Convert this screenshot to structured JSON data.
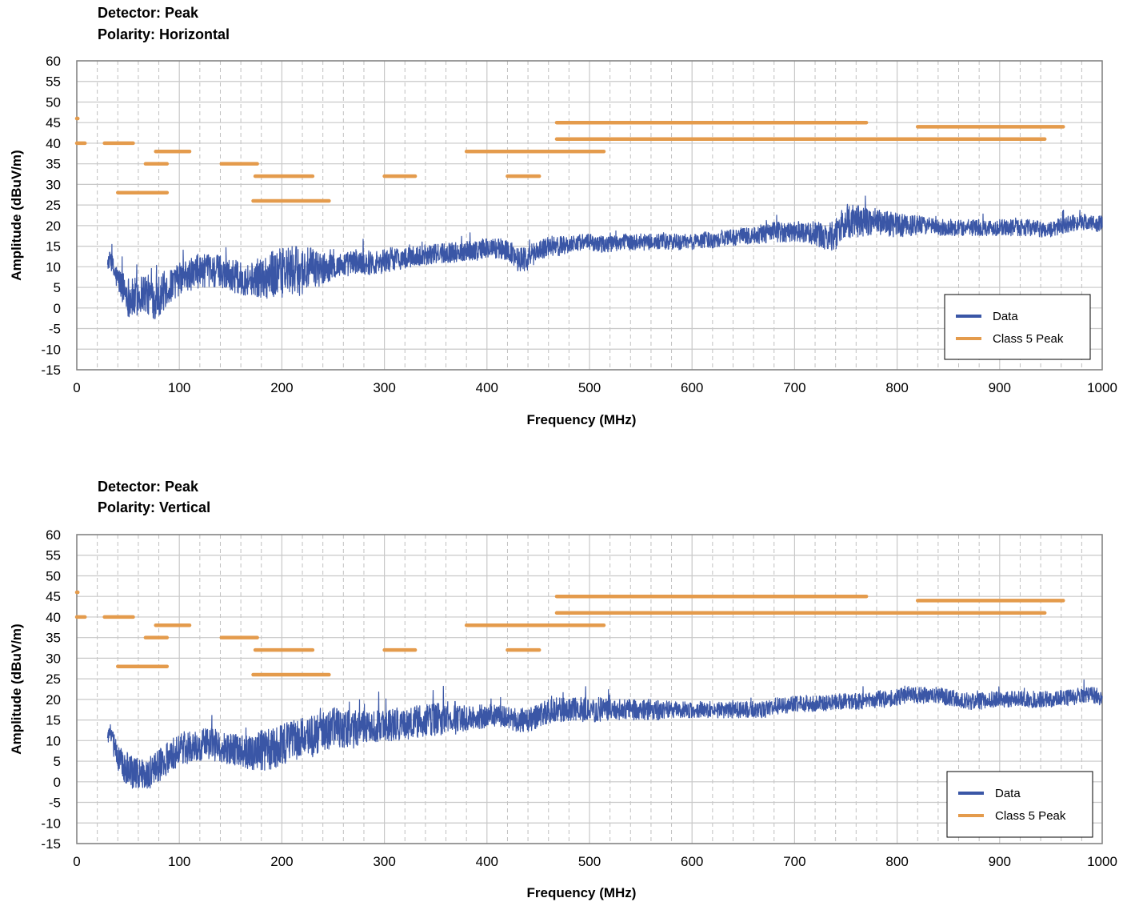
{
  "colors": {
    "data": "#3a56a6",
    "limit": "#e49b4c",
    "grid": "#c8c8c8",
    "axis": "#808080"
  },
  "chart_data": [
    {
      "type": "line",
      "title_lines": [
        "Detector: Peak",
        "Polarity: Horizontal"
      ],
      "xlabel": "Frequency (MHz)",
      "ylabel": "Amplitude (dBuV/m)",
      "xlim": [
        0,
        1000
      ],
      "ylim": [
        -15,
        60
      ],
      "x_ticks": [
        0,
        100,
        200,
        300,
        400,
        500,
        600,
        700,
        800,
        900,
        1000
      ],
      "y_ticks": [
        60,
        55,
        50,
        45,
        40,
        35,
        30,
        25,
        20,
        15,
        10,
        5,
        0,
        -5,
        -10,
        -15
      ],
      "grid": true,
      "legend_position": "bottom-right",
      "legend": [
        "Data",
        "Class 5 Peak"
      ],
      "series": [
        {
          "name": "Data",
          "style": "noisy-line",
          "x": [
            30,
            33,
            36,
            40,
            45,
            50,
            55,
            60,
            65,
            70,
            75,
            80,
            85,
            90,
            95,
            100,
            110,
            120,
            130,
            140,
            150,
            160,
            170,
            180,
            190,
            200,
            210,
            220,
            230,
            240,
            250,
            260,
            270,
            280,
            290,
            300,
            310,
            320,
            330,
            340,
            350,
            360,
            370,
            380,
            390,
            400,
            410,
            420,
            430,
            440,
            450,
            460,
            470,
            480,
            490,
            500,
            510,
            520,
            530,
            540,
            550,
            560,
            570,
            580,
            590,
            600,
            610,
            620,
            630,
            640,
            650,
            660,
            670,
            680,
            690,
            700,
            710,
            720,
            730,
            740,
            750,
            760,
            770,
            780,
            790,
            800,
            810,
            820,
            830,
            840,
            850,
            860,
            870,
            880,
            890,
            900,
            910,
            920,
            930,
            940,
            950,
            960,
            970,
            980,
            990,
            1000
          ],
          "y": [
            11,
            12,
            9,
            7,
            5,
            3,
            2,
            3,
            4,
            3,
            2,
            3,
            4,
            5,
            6,
            7,
            8,
            9,
            9,
            9,
            8,
            7,
            7,
            7.5,
            8,
            8.5,
            9,
            9,
            9.5,
            9.5,
            10,
            10.5,
            11,
            11,
            11,
            11.5,
            12,
            12,
            12.5,
            13,
            13,
            13.5,
            13.5,
            14,
            14,
            14.5,
            14.5,
            14,
            12,
            12,
            14,
            15,
            15,
            15.5,
            16,
            16,
            15.5,
            15.5,
            16,
            16,
            16,
            16,
            16,
            16,
            16,
            16,
            16.5,
            16.5,
            17,
            17,
            17.5,
            17.5,
            18,
            18.5,
            18.5,
            18.5,
            18.5,
            18,
            17,
            18,
            21,
            21,
            21,
            21,
            20.5,
            20,
            20,
            20,
            20,
            19.5,
            19.5,
            19.5,
            19.5,
            19.5,
            19.5,
            19.5,
            19.5,
            19.5,
            19.5,
            19,
            19,
            20,
            20.5,
            21,
            20.5,
            20.5
          ],
          "noise": [
            2,
            2,
            3,
            3,
            4,
            5,
            5,
            5,
            5,
            5,
            5,
            5,
            5,
            4,
            4,
            4,
            4,
            4,
            4,
            4,
            4,
            4,
            4,
            5,
            6,
            6,
            6,
            6,
            5,
            4,
            3,
            3,
            3,
            3,
            3,
            3,
            3,
            2.5,
            2.5,
            2.5,
            2.5,
            2.5,
            2.5,
            2.5,
            2.5,
            2.5,
            2.5,
            2.5,
            3,
            3,
            2.5,
            2.5,
            2.5,
            2,
            2,
            2,
            2,
            2,
            2,
            2,
            2,
            2,
            2,
            2,
            2,
            2,
            2,
            2,
            2,
            2,
            2,
            2,
            2.5,
            2.5,
            2.5,
            2.5,
            2.5,
            3,
            3,
            4,
            4,
            4,
            3.5,
            3,
            3,
            3,
            2.5,
            2.5,
            2,
            2,
            2,
            2,
            2,
            2,
            2,
            2,
            2,
            2,
            2,
            2,
            2,
            2,
            2,
            2,
            2,
            2
          ]
        },
        {
          "name": "Class 5 Peak",
          "style": "segments",
          "segments": [
            [
              0,
              46,
              1,
              46
            ],
            [
              0,
              40,
              8,
              40
            ],
            [
              27,
              40,
              55,
              40
            ],
            [
              40,
              28,
              88,
              28
            ],
            [
              67,
              35,
              88,
              35
            ],
            [
              77,
              38,
              110,
              38
            ],
            [
              141,
              35,
              176,
              35
            ],
            [
              172,
              26,
              246,
              26
            ],
            [
              174,
              32,
              230,
              32
            ],
            [
              300,
              32,
              330,
              32
            ],
            [
              380,
              38,
              514,
              38
            ],
            [
              420,
              32,
              451,
              32
            ],
            [
              468,
              45,
              770,
              45
            ],
            [
              468,
              41,
              944,
              41
            ],
            [
              820,
              44,
              962,
              44
            ]
          ]
        }
      ]
    },
    {
      "type": "line",
      "title_lines": [
        "Detector: Peak",
        "Polarity: Vertical"
      ],
      "xlabel": "Frequency (MHz)",
      "ylabel": "Amplitude (dBuV/m)",
      "xlim": [
        0,
        1000
      ],
      "ylim": [
        -15,
        60
      ],
      "x_ticks": [
        0,
        100,
        200,
        300,
        400,
        500,
        600,
        700,
        800,
        900,
        1000
      ],
      "y_ticks": [
        60,
        55,
        50,
        45,
        40,
        35,
        30,
        25,
        20,
        15,
        10,
        5,
        0,
        -5,
        -10,
        -15
      ],
      "grid": true,
      "legend_position": "bottom-right",
      "legend": [
        "Data",
        "Class 5 Peak"
      ],
      "series": [
        {
          "name": "Data",
          "style": "noisy-line",
          "x": [
            30,
            33,
            36,
            40,
            45,
            50,
            55,
            60,
            65,
            70,
            75,
            80,
            85,
            90,
            95,
            100,
            110,
            120,
            130,
            140,
            150,
            160,
            170,
            180,
            190,
            200,
            210,
            220,
            230,
            240,
            250,
            260,
            270,
            280,
            290,
            300,
            310,
            320,
            330,
            340,
            350,
            360,
            370,
            380,
            390,
            400,
            410,
            420,
            430,
            440,
            450,
            460,
            470,
            480,
            490,
            500,
            510,
            520,
            530,
            540,
            550,
            560,
            570,
            580,
            590,
            600,
            610,
            620,
            630,
            640,
            650,
            660,
            670,
            680,
            690,
            700,
            710,
            720,
            730,
            740,
            750,
            760,
            770,
            780,
            790,
            800,
            810,
            820,
            830,
            840,
            850,
            860,
            870,
            880,
            890,
            900,
            910,
            920,
            930,
            940,
            950,
            960,
            970,
            980,
            990,
            1000
          ],
          "y": [
            11,
            12,
            9,
            6,
            4,
            3,
            2,
            2,
            2,
            2,
            3,
            4,
            5,
            6,
            7,
            8,
            8.5,
            9,
            9,
            8.5,
            8,
            7.5,
            7,
            7.5,
            8,
            9,
            10,
            10.5,
            11,
            12,
            13,
            13,
            13,
            13.5,
            13.5,
            13.5,
            14,
            14,
            14.5,
            15,
            15,
            15.5,
            15.5,
            15.5,
            15.5,
            16,
            16,
            16,
            15,
            15,
            16,
            17,
            17.5,
            17.5,
            17.5,
            17.5,
            17.5,
            17.5,
            17.5,
            17.5,
            17.5,
            17.5,
            17.5,
            17.5,
            17.5,
            17.5,
            17.5,
            17.5,
            17.5,
            17.5,
            17.5,
            17.5,
            17.5,
            18,
            18.5,
            19,
            19,
            19,
            19,
            19.5,
            19.5,
            19.5,
            19.5,
            20,
            20,
            20.5,
            21,
            21,
            21,
            21,
            20.5,
            20,
            19.5,
            19.5,
            20,
            20,
            20,
            20,
            20,
            20,
            20,
            20.5,
            20.5,
            21,
            21,
            20.5
          ],
          "noise": [
            2,
            2,
            3,
            3,
            4,
            4,
            4,
            4,
            4,
            4,
            4,
            4,
            4,
            4,
            4,
            4,
            4,
            4,
            4,
            4,
            4,
            4,
            4,
            5,
            5,
            5,
            5,
            5,
            5,
            5,
            5,
            5,
            5,
            4,
            4,
            4,
            4,
            4,
            4,
            4,
            4,
            4,
            4,
            3,
            3,
            3,
            3,
            3,
            3,
            3,
            3,
            3,
            3,
            3,
            3,
            3,
            3,
            2.5,
            2.5,
            2.5,
            2.5,
            2.5,
            2.5,
            2,
            2,
            2,
            2,
            2,
            2,
            2,
            2,
            2,
            2,
            2,
            2,
            2,
            2,
            2,
            2,
            2,
            2,
            2,
            2,
            2,
            2,
            2,
            2,
            2,
            2,
            2,
            2,
            2,
            2,
            2,
            2,
            2,
            2,
            2,
            2,
            2,
            2,
            2,
            2,
            2,
            2,
            2
          ]
        },
        {
          "name": "Class 5 Peak",
          "style": "segments",
          "segments": [
            [
              0,
              46,
              1,
              46
            ],
            [
              0,
              40,
              8,
              40
            ],
            [
              27,
              40,
              55,
              40
            ],
            [
              40,
              28,
              88,
              28
            ],
            [
              67,
              35,
              88,
              35
            ],
            [
              77,
              38,
              110,
              38
            ],
            [
              141,
              35,
              176,
              35
            ],
            [
              172,
              26,
              246,
              26
            ],
            [
              174,
              32,
              230,
              32
            ],
            [
              300,
              32,
              330,
              32
            ],
            [
              380,
              38,
              514,
              38
            ],
            [
              420,
              32,
              451,
              32
            ],
            [
              468,
              45,
              770,
              45
            ],
            [
              468,
              41,
              944,
              41
            ],
            [
              820,
              44,
              962,
              44
            ]
          ]
        }
      ]
    }
  ]
}
